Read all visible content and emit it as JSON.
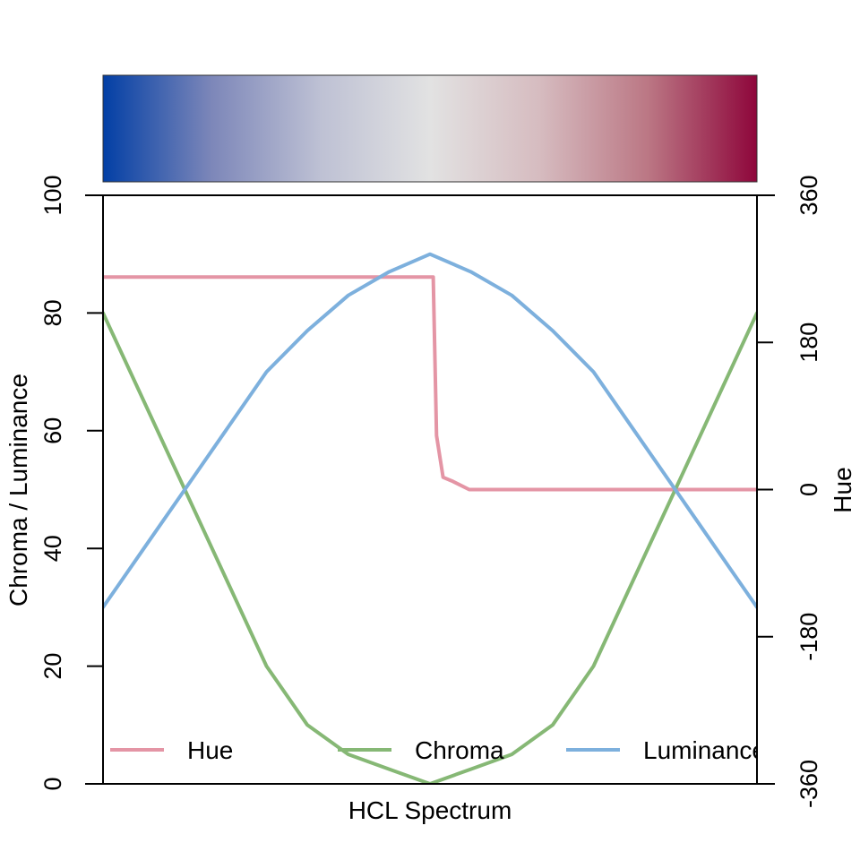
{
  "chart_data": {
    "type": "line",
    "xlabel": "HCL Spectrum",
    "ylabel": "Chroma / Luminance",
    "ylabel_right": "Hue",
    "x": [
      0,
      0.0625,
      0.125,
      0.1875,
      0.25,
      0.3125,
      0.375,
      0.4375,
      0.5,
      0.5625,
      0.625,
      0.6875,
      0.75,
      0.8125,
      0.875,
      0.9375,
      1
    ],
    "ylim": [
      0,
      100
    ],
    "ylim_right": [
      -360,
      360
    ],
    "yticks": [
      "0",
      "20",
      "40",
      "60",
      "80",
      "100"
    ],
    "yticks_right": [
      "-360",
      "-180",
      "0",
      "180",
      "360"
    ],
    "colorbar": {
      "stops": [
        "#023FA5",
        "#7D87B9",
        "#BEC1D4",
        "#E2E2E2",
        "#D6BCC0",
        "#BB7784",
        "#8E063B"
      ]
    },
    "series": [
      {
        "name": "Hue",
        "color": "#E495A5",
        "axis": "right",
        "x": [
          0,
          0.1,
          0.2,
          0.3,
          0.4,
          0.505,
          0.51,
          0.52,
          0.535,
          0.56,
          0.6,
          0.7,
          0.8,
          0.9,
          1
        ],
        "values": [
          260,
          260,
          260,
          260,
          260,
          260,
          66,
          15,
          10,
          0,
          0,
          0,
          0,
          0,
          0
        ]
      },
      {
        "name": "Chroma",
        "color": "#86B875",
        "axis": "left",
        "values": [
          80,
          65,
          50,
          35,
          20,
          10,
          5,
          2.5,
          0,
          2.5,
          5,
          10,
          20,
          35,
          50,
          65,
          80
        ]
      },
      {
        "name": "Luminance",
        "color": "#7DB0DD",
        "axis": "left",
        "values": [
          30,
          40,
          50,
          60,
          70,
          77,
          83,
          87,
          90,
          87,
          83,
          77,
          70,
          60,
          50,
          40,
          30
        ]
      }
    ],
    "legend": {
      "position": "bottom",
      "entries": [
        "Hue",
        "Chroma",
        "Luminance"
      ]
    }
  }
}
